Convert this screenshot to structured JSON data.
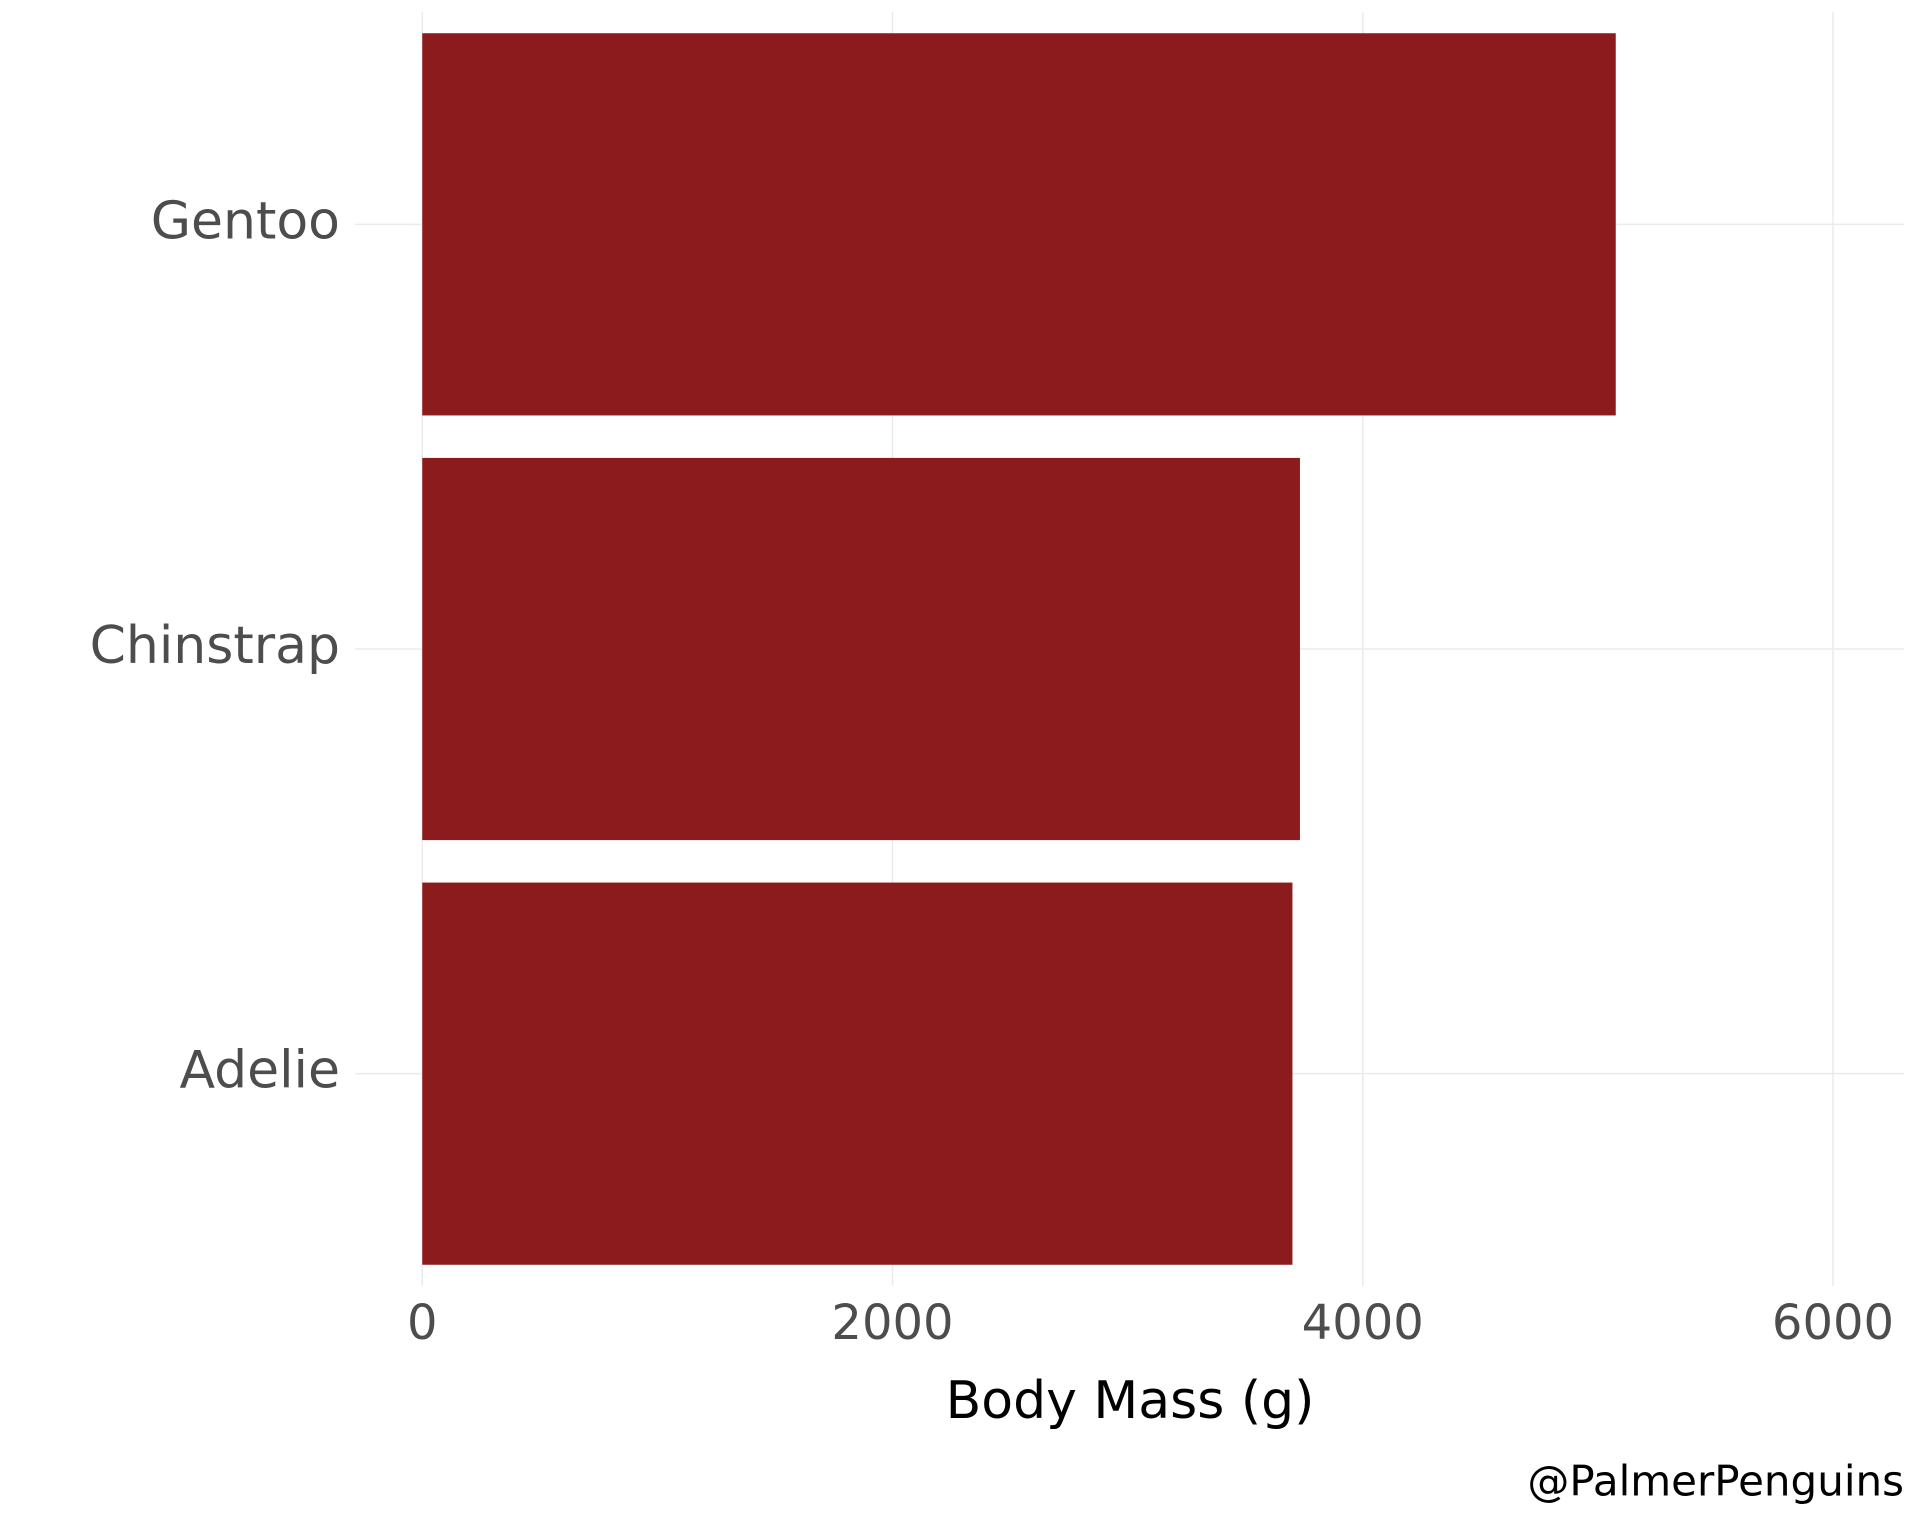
{
  "chart_data": {
    "type": "bar",
    "orientation": "horizontal",
    "categories": [
      "Adelie",
      "Chinstrap",
      "Gentoo"
    ],
    "values": [
      3701,
      3733,
      5076
    ],
    "color": "#8b1b1c",
    "xlabel": "Body Mass (g)",
    "caption": "@PalmerPenguins",
    "xlim": [
      -286,
      6302
    ],
    "xticks": [
      0,
      2000,
      4000,
      6000
    ],
    "grid": true
  }
}
